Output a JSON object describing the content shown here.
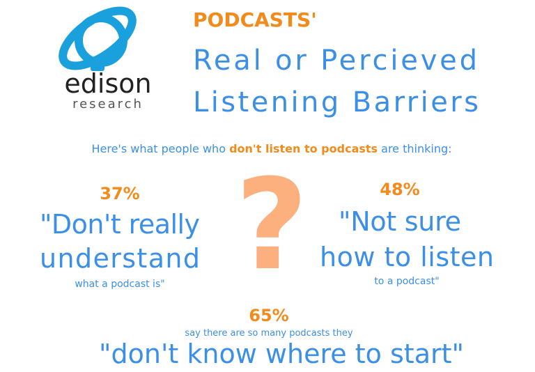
{
  "logo": {
    "name": "edison",
    "tagline": "research"
  },
  "header": {
    "kicker": "PODCASTS'",
    "title_line1": "Real or Percieved",
    "title_line2": "Listening Barriers"
  },
  "intro": {
    "before": "Here's what people who ",
    "highlight": "don't listen to podcasts",
    "after": " are thinking:"
  },
  "question_mark": "?",
  "stats": [
    {
      "percent": "37%",
      "line1": "\"Don't really",
      "line2": "understand",
      "note": "what a podcast is\""
    },
    {
      "percent": "48%",
      "line1": "\"Not sure",
      "line2": "how to listen",
      "note": "to a podcast\""
    },
    {
      "percent": "65%",
      "note": "say there are so many podcasts they",
      "line1": "\"don't know where to start\""
    }
  ]
}
